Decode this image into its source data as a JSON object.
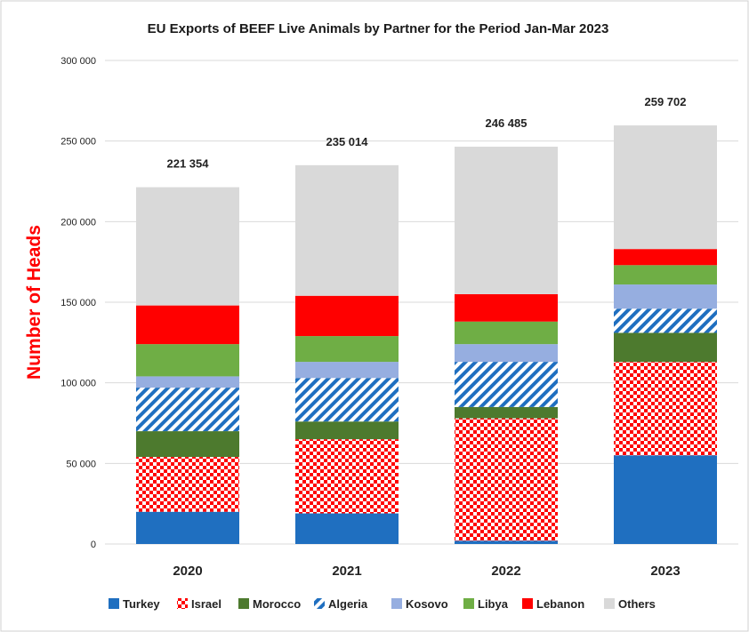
{
  "chart_data": {
    "type": "bar",
    "stacked": true,
    "title": "EU Exports of BEEF Live Animals by Partner for the Period Jan-Mar 2023",
    "ylabel": "Number of Heads",
    "xlabel": "",
    "ylim": [
      0,
      300000
    ],
    "yticks": [
      0,
      50000,
      100000,
      150000,
      200000,
      250000,
      300000
    ],
    "ytick_labels": [
      "0",
      "50 000",
      "100 000",
      "150 000",
      "200 000",
      "250 000",
      "300 000"
    ],
    "grid": true,
    "legend_position": "bottom",
    "categories": [
      "2020",
      "2021",
      "2022",
      "2023"
    ],
    "totals": [
      221354,
      235014,
      246485,
      259702
    ],
    "total_labels": [
      "221 354",
      "235 014",
      "246 485",
      "259 702"
    ],
    "series": [
      {
        "name": "Turkey",
        "color": "#1f6fc0",
        "pattern": "solid",
        "values": [
          20000,
          19000,
          2000,
          55000
        ]
      },
      {
        "name": "Israel",
        "color": "#ff0000",
        "pattern": "checks",
        "values": [
          34000,
          46000,
          76000,
          58000
        ]
      },
      {
        "name": "Morocco",
        "color": "#4d7a2e",
        "pattern": "solid",
        "values": [
          16000,
          11000,
          7000,
          18000
        ]
      },
      {
        "name": "Algeria",
        "color": "#1f6fc0",
        "pattern": "diagonal",
        "values": [
          27000,
          27000,
          28000,
          15000
        ]
      },
      {
        "name": "Kosovo",
        "color": "#96aee0",
        "pattern": "solid",
        "values": [
          7000,
          10000,
          11000,
          15000
        ]
      },
      {
        "name": "Libya",
        "color": "#6fae45",
        "pattern": "solid",
        "values": [
          20000,
          16000,
          14000,
          12000
        ]
      },
      {
        "name": "Lebanon",
        "color": "#ff0000",
        "pattern": "solid",
        "values": [
          24000,
          25000,
          17000,
          10000
        ]
      },
      {
        "name": "Others",
        "color": "#d9d9d9",
        "pattern": "solid",
        "values": [
          73354,
          81014,
          91485,
          76702
        ]
      }
    ]
  }
}
